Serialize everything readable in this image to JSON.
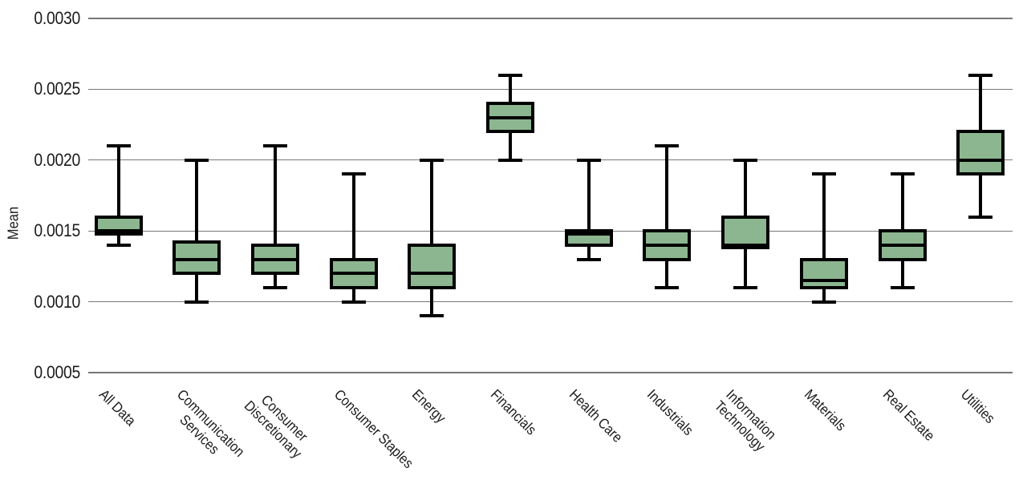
{
  "chart_data": {
    "type": "boxplot",
    "title": "",
    "xlabel": "",
    "ylabel": "Mean",
    "ylim": [
      0.0005,
      0.003
    ],
    "yticks": [
      "0.0030",
      "0.0025",
      "0.0020",
      "0.0015",
      "0.0010",
      "0.0005"
    ],
    "grid": "horizontal gridlines on",
    "legend": "none",
    "colors": {
      "box_fill": "#8cb690",
      "box_edge": "#000000",
      "whisker": "#000000",
      "gridline": "#777777",
      "text": "#1a1a1a",
      "background": "#ffffff"
    },
    "series": [
      {
        "label": "All Data",
        "label_lines": [
          "All Data"
        ],
        "whislo": 0.0014,
        "q1": 0.00148,
        "med": 0.0015,
        "q3": 0.0016,
        "whishi": 0.0021
      },
      {
        "label": "Communication Services",
        "label_lines": [
          "Communication",
          "Services"
        ],
        "whislo": 0.001,
        "q1": 0.0012,
        "med": 0.0013,
        "q3": 0.00142,
        "whishi": 0.002
      },
      {
        "label": "Consumer Discretionary",
        "label_lines": [
          "Consumer",
          "Discretionary"
        ],
        "whislo": 0.0011,
        "q1": 0.0012,
        "med": 0.0013,
        "q3": 0.0014,
        "whishi": 0.0021
      },
      {
        "label": "Consumer Staples",
        "label_lines": [
          "Consumer Staples"
        ],
        "whislo": 0.001,
        "q1": 0.0011,
        "med": 0.0012,
        "q3": 0.0013,
        "whishi": 0.0019
      },
      {
        "label": "Energy",
        "label_lines": [
          "Energy"
        ],
        "whislo": 0.0009,
        "q1": 0.0011,
        "med": 0.0012,
        "q3": 0.0014,
        "whishi": 0.002
      },
      {
        "label": "Financials",
        "label_lines": [
          "Financials"
        ],
        "whislo": 0.002,
        "q1": 0.0022,
        "med": 0.0023,
        "q3": 0.0024,
        "whishi": 0.0026
      },
      {
        "label": "Health Care",
        "label_lines": [
          "Health Care"
        ],
        "whislo": 0.0013,
        "q1": 0.0014,
        "med": 0.00148,
        "q3": 0.0015,
        "whishi": 0.002
      },
      {
        "label": "Industrials",
        "label_lines": [
          "Industrials"
        ],
        "whislo": 0.0011,
        "q1": 0.0013,
        "med": 0.0014,
        "q3": 0.0015,
        "whishi": 0.0021
      },
      {
        "label": "Information Technology",
        "label_lines": [
          "Information",
          "Technology"
        ],
        "whislo": 0.0011,
        "q1": 0.00138,
        "med": 0.0014,
        "q3": 0.0016,
        "whishi": 0.002
      },
      {
        "label": "Materials",
        "label_lines": [
          "Materials"
        ],
        "whislo": 0.001,
        "q1": 0.0011,
        "med": 0.00115,
        "q3": 0.0013,
        "whishi": 0.0019
      },
      {
        "label": "Real Estate",
        "label_lines": [
          "Real Estate"
        ],
        "whislo": 0.0011,
        "q1": 0.0013,
        "med": 0.0014,
        "q3": 0.0015,
        "whishi": 0.0019
      },
      {
        "label": "Utilities",
        "label_lines": [
          "Utilities"
        ],
        "whislo": 0.0016,
        "q1": 0.0019,
        "med": 0.002,
        "q3": 0.0022,
        "whishi": 0.0026
      }
    ]
  }
}
